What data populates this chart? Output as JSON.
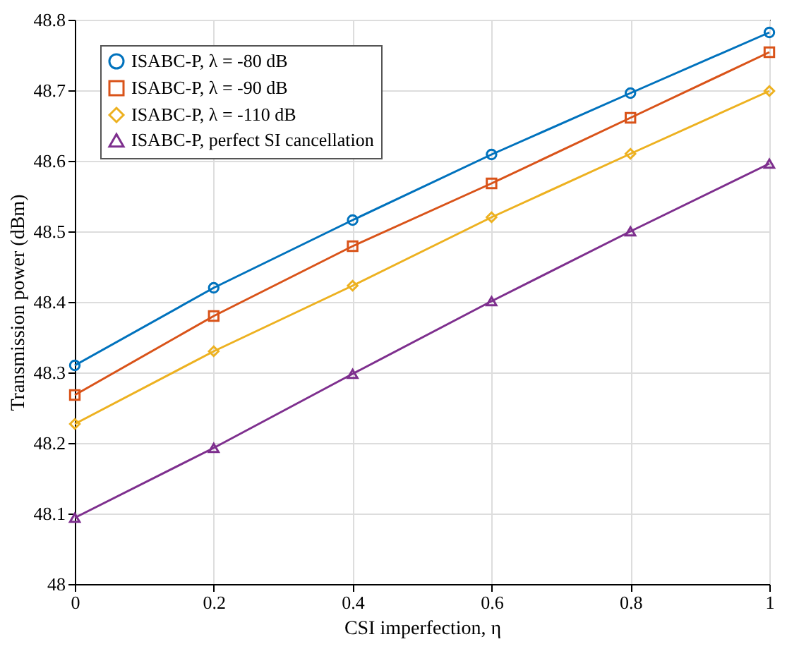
{
  "chart_data": {
    "type": "line",
    "xlabel": "CSI imperfection, η",
    "ylabel": "Transmission power (dBm)",
    "x": [
      0,
      0.2,
      0.4,
      0.6,
      0.8,
      1
    ],
    "series": [
      {
        "name": "ISABC-P, λ = -80 dB",
        "color": "#0072bd",
        "marker": "circle",
        "values": [
          48.31,
          48.42,
          48.516,
          48.609,
          48.696,
          48.782
        ]
      },
      {
        "name": "ISABC-P, λ = -90 dB",
        "color": "#d95319",
        "marker": "square",
        "values": [
          48.268,
          48.38,
          48.479,
          48.568,
          48.661,
          48.754
        ]
      },
      {
        "name": "ISABC-P, λ = -110 dB",
        "color": "#edb120",
        "marker": "diamond",
        "values": [
          48.227,
          48.33,
          48.423,
          48.52,
          48.61,
          48.699
        ]
      },
      {
        "name": "ISABC-P, perfect SI cancellation",
        "color": "#7e2f8e",
        "marker": "triangle",
        "values": [
          48.094,
          48.193,
          48.298,
          48.401,
          48.5,
          48.596
        ]
      }
    ],
    "xlim": [
      0,
      1
    ],
    "xticks": [
      0,
      0.2,
      0.4,
      0.6,
      0.8,
      1
    ],
    "ylim": [
      48,
      48.8
    ],
    "yticks": [
      48,
      48.1,
      48.2,
      48.3,
      48.4,
      48.5,
      48.6,
      48.7,
      48.8
    ],
    "grid": true,
    "legend": "top left",
    "line_style": "solid"
  }
}
